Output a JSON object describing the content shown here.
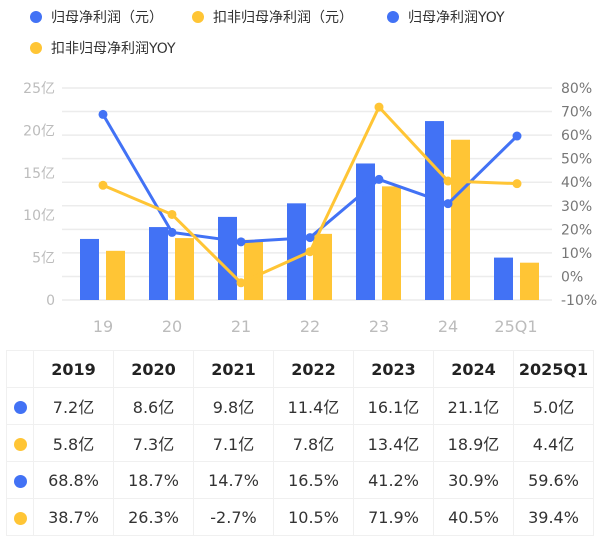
{
  "colors": {
    "blue": "#4272F5",
    "yellow": "#FFC535",
    "grid": "#ececec",
    "axis_text": "#bcbcbc"
  },
  "legend": [
    {
      "label": "归母净利润（元）",
      "color": "#4272F5"
    },
    {
      "label": "扣非归母净利润（元）",
      "color": "#FFC535"
    },
    {
      "label": "归母净利润YOY",
      "color": "#4272F5"
    },
    {
      "label": "扣非归母净利润YOY",
      "color": "#FFC535"
    }
  ],
  "chart_data": {
    "type": "bar+line",
    "categories": [
      "19",
      "20",
      "21",
      "22",
      "23",
      "24",
      "25Q1"
    ],
    "left_axis": {
      "ticks": [
        "25亿",
        "20亿",
        "15亿",
        "10亿",
        "5亿",
        "0"
      ],
      "ylim": [
        0,
        25
      ],
      "unit": "亿"
    },
    "right_axis": {
      "ticks": [
        "80%",
        "70%",
        "60%",
        "50%",
        "40%",
        "30%",
        "20%",
        "10%",
        "0%",
        "-10%"
      ],
      "ylim": [
        -10,
        80
      ],
      "unit": "%"
    },
    "series": [
      {
        "name": "归母净利润（元）",
        "type": "bar",
        "axis": "left",
        "color": "#4272F5",
        "values": [
          7.2,
          8.6,
          9.8,
          11.4,
          16.1,
          21.1,
          5.0
        ]
      },
      {
        "name": "扣非归母净利润（元）",
        "type": "bar",
        "axis": "left",
        "color": "#FFC535",
        "values": [
          5.8,
          7.3,
          7.1,
          7.8,
          13.4,
          18.9,
          4.4
        ]
      },
      {
        "name": "归母净利润YOY",
        "type": "line",
        "axis": "right",
        "color": "#4272F5",
        "values": [
          68.8,
          18.7,
          14.7,
          16.5,
          41.2,
          30.9,
          59.6
        ]
      },
      {
        "name": "扣非归母净利润YOY",
        "type": "line",
        "axis": "right",
        "color": "#FFC535",
        "values": [
          38.7,
          26.3,
          -2.7,
          10.5,
          71.9,
          40.5,
          39.4
        ]
      }
    ],
    "grid": true,
    "legend_position": "top-left"
  },
  "table": {
    "headers": [
      "2019",
      "2020",
      "2021",
      "2022",
      "2023",
      "2024",
      "2025Q1"
    ],
    "rows": [
      {
        "color": "#4272F5",
        "cells": [
          "7.2亿",
          "8.6亿",
          "9.8亿",
          "11.4亿",
          "16.1亿",
          "21.1亿",
          "5.0亿"
        ]
      },
      {
        "color": "#FFC535",
        "cells": [
          "5.8亿",
          "7.3亿",
          "7.1亿",
          "7.8亿",
          "13.4亿",
          "18.9亿",
          "4.4亿"
        ]
      },
      {
        "color": "#4272F5",
        "cells": [
          "68.8%",
          "18.7%",
          "14.7%",
          "16.5%",
          "41.2%",
          "30.9%",
          "59.6%"
        ]
      },
      {
        "color": "#FFC535",
        "cells": [
          "38.7%",
          "26.3%",
          "-2.7%",
          "10.5%",
          "71.9%",
          "40.5%",
          "39.4%"
        ]
      }
    ]
  }
}
